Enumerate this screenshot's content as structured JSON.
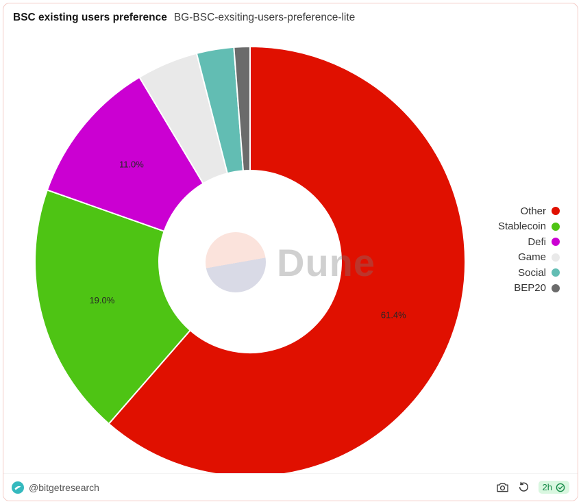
{
  "header": {
    "title": "BSC existing users preference",
    "subtitle": "BG-BSC-exsiting-users-preference-lite"
  },
  "chart_data": {
    "type": "pie",
    "donut": true,
    "title": "BSC existing users preference",
    "direction": "clockwise",
    "start_angle_deg": 0,
    "legend_position": "right",
    "slices": [
      {
        "name": "Other",
        "value": 61.4,
        "label": "61.4%",
        "color": "#e01000"
      },
      {
        "name": "Stablecoin",
        "value": 19.0,
        "label": "19.0%",
        "color": "#4ec414"
      },
      {
        "name": "Defi",
        "value": 11.0,
        "label": "11.0%",
        "color": "#cb00d2"
      },
      {
        "name": "Game",
        "value": 4.6,
        "label": "",
        "color": "#e9e9e9"
      },
      {
        "name": "Social",
        "value": 2.8,
        "label": "",
        "color": "#62bdb3"
      },
      {
        "name": "BEP20",
        "value": 1.2,
        "label": "",
        "color": "#6b6b6b"
      }
    ]
  },
  "watermark": {
    "text": "Dune"
  },
  "footer": {
    "author": "@bitgetresearch",
    "age_badge": "2h"
  },
  "colors": {
    "card_border": "#f3cac5",
    "badge_bg": "#d9f7e0",
    "badge_text": "#158a47",
    "bitget_teal": "#35b9be"
  }
}
